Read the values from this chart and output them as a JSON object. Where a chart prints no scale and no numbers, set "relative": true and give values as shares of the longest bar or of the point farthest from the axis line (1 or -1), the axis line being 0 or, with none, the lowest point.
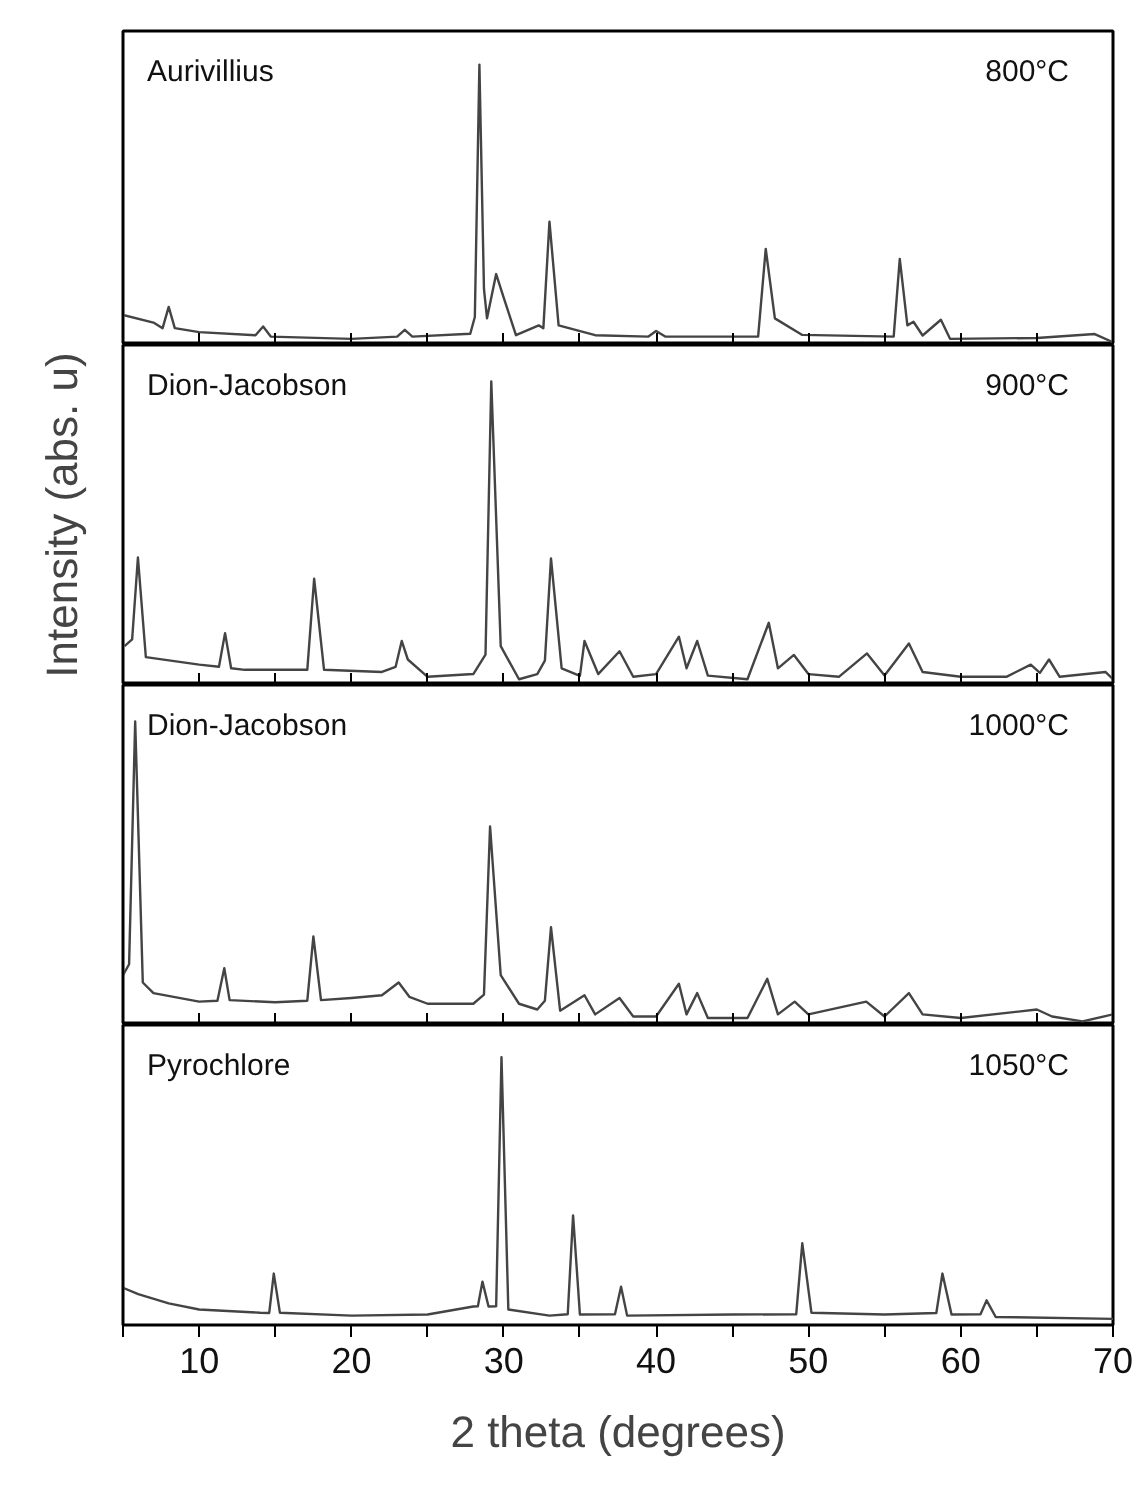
{
  "chart_data": [
    {
      "type": "line",
      "relative": true,
      "xlim": [
        5,
        70
      ],
      "xticks": [
        {
          "value": 5,
          "label": null
        },
        10,
        {
          "value": 15,
          "label": null
        },
        20,
        {
          "value": 25,
          "label": null
        },
        30,
        {
          "value": 35,
          "label": null
        },
        40,
        {
          "value": 45,
          "label": null
        },
        50,
        {
          "value": 55,
          "label": null
        },
        60,
        {
          "value": 65,
          "label": null
        },
        70
      ],
      "tick_labels": false,
      "grid": false,
      "annotations": [
        "Aurivillius",
        "800°C"
      ],
      "series": [
        {
          "color": "#444444",
          "x": [
            5,
            7,
            7.6,
            8.0,
            8.4,
            10,
            13.7,
            14.2,
            14.7,
            20,
            23.0,
            23.5,
            24.0,
            27.8,
            28.1,
            28.4,
            28.7,
            28.9,
            29.5,
            30.0,
            30.8,
            32.3,
            32.6,
            33.0,
            33.6,
            36.0,
            39.5,
            40.0,
            40.6,
            46.7,
            47.2,
            47.8,
            49.6,
            55.6,
            56.0,
            56.5,
            56.9,
            57.5,
            58.7,
            59.3,
            65,
            68.8,
            70
          ],
          "values": [
            0.107,
            0.08,
            0.06,
            0.136,
            0.06,
            0.046,
            0.035,
            0.066,
            0.03,
            0.022,
            0.03,
            0.054,
            0.03,
            0.04,
            0.1,
            1,
            0.2,
            0.095,
            0.253,
            0.168,
            0.035,
            0.07,
            0.06,
            0.44,
            0.07,
            0.035,
            0.03,
            0.05,
            0.03,
            0.03,
            0.343,
            0.095,
            0.036,
            0.03,
            0.307,
            0.07,
            0.083,
            0.034,
            0.09,
            0.022,
            0.025,
            0.039,
            0.01
          ]
        }
      ]
    },
    {
      "type": "line",
      "relative": true,
      "xlim": [
        5,
        70
      ],
      "xticks": [
        {
          "value": 5,
          "label": null
        },
        10,
        {
          "value": 15,
          "label": null
        },
        20,
        {
          "value": 25,
          "label": null
        },
        30,
        {
          "value": 35,
          "label": null
        },
        40,
        {
          "value": 45,
          "label": null
        },
        50,
        {
          "value": 55,
          "label": null
        },
        60,
        {
          "value": 65,
          "label": null
        },
        70
      ],
      "tick_labels": false,
      "grid": false,
      "ylabel": "Intensity (abs. u)",
      "annotations": [
        "Dion-Jacobson",
        "900°C"
      ],
      "series": [
        {
          "color": "#444444",
          "x": [
            5.1,
            5.6,
            5.98,
            6.5,
            10,
            11.3,
            11.7,
            12.1,
            13,
            17.1,
            17.55,
            18.2,
            22,
            22.9,
            23.3,
            23.7,
            25,
            28,
            28.8,
            29.18,
            29.8,
            31,
            32.2,
            32.7,
            33.1,
            33.8,
            35.0,
            35.3,
            36.2,
            37.6,
            38.5,
            40,
            41.5,
            42.0,
            42.7,
            43.4,
            46,
            47.4,
            48,
            49.05,
            50,
            52,
            53.85,
            55,
            56.6,
            57.5,
            60,
            63,
            64.6,
            65.2,
            65.8,
            66.5,
            69.5,
            70
          ],
          "values": [
            0.128,
            0.15,
            0.42,
            0.092,
            0.067,
            0.06,
            0.171,
            0.055,
            0.05,
            0.05,
            0.35,
            0.05,
            0.043,
            0.06,
            0.145,
            0.084,
            0.027,
            0.036,
            0.1,
            1,
            0.128,
            0.019,
            0.036,
            0.08,
            0.417,
            0.055,
            0.03,
            0.145,
            0.036,
            0.111,
            0.027,
            0.036,
            0.159,
            0.055,
            0.145,
            0.031,
            0.019,
            0.205,
            0.055,
            0.099,
            0.036,
            0.027,
            0.104,
            0.031,
            0.137,
            0.043,
            0.027,
            0.027,
            0.067,
            0.04,
            0.084,
            0.027,
            0.043,
            0.019
          ]
        }
      ]
    },
    {
      "type": "line",
      "relative": true,
      "xlim": [
        5,
        70
      ],
      "xticks": [
        {
          "value": 5,
          "label": null
        },
        10,
        {
          "value": 15,
          "label": null
        },
        20,
        {
          "value": 25,
          "label": null
        },
        30,
        {
          "value": 35,
          "label": null
        },
        40,
        {
          "value": 45,
          "label": null
        },
        50,
        {
          "value": 55,
          "label": null
        },
        60,
        {
          "value": 65,
          "label": null
        },
        70
      ],
      "tick_labels": false,
      "grid": false,
      "annotations": [
        "Dion-Jacobson",
        "1000°C"
      ],
      "series": [
        {
          "color": "#444444",
          "x": [
            5,
            5.4,
            5.8,
            6.3,
            7,
            10,
            11.2,
            11.65,
            12,
            15,
            17.1,
            17.5,
            18,
            20,
            22,
            23.1,
            23.8,
            25,
            28,
            28.7,
            29.1,
            29.8,
            31,
            32.2,
            32.7,
            33.1,
            33.7,
            35.3,
            36,
            37.6,
            38.5,
            40,
            41.5,
            42,
            42.7,
            43.4,
            46,
            47.3,
            48,
            49.1,
            50,
            53.8,
            55,
            56.6,
            57.5,
            60,
            65,
            66,
            68,
            70
          ],
          "values": [
            0.164,
            0.2,
            1,
            0.14,
            0.105,
            0.077,
            0.08,
            0.187,
            0.082,
            0.075,
            0.08,
            0.292,
            0.082,
            0.089,
            0.098,
            0.14,
            0.093,
            0.07,
            0.07,
            0.1,
            0.654,
            0.164,
            0.07,
            0.051,
            0.08,
            0.322,
            0.047,
            0.098,
            0.035,
            0.089,
            0.028,
            0.028,
            0.136,
            0.035,
            0.105,
            0.023,
            0.023,
            0.152,
            0.035,
            0.077,
            0.035,
            0.077,
            0.028,
            0.105,
            0.035,
            0.023,
            0.051,
            0.028,
            0.012,
            0.035
          ]
        }
      ]
    },
    {
      "type": "line",
      "relative": true,
      "xlim": [
        5,
        70
      ],
      "xticks": [
        {
          "value": 5,
          "label": null
        },
        10,
        {
          "value": 15,
          "label": null
        },
        20,
        {
          "value": 25,
          "label": null
        },
        30,
        {
          "value": 35,
          "label": null
        },
        40,
        {
          "value": 45,
          "label": null
        },
        50,
        {
          "value": 55,
          "label": null
        },
        60,
        {
          "value": 65,
          "label": null
        },
        70
      ],
      "tick_labels": "x",
      "grid": false,
      "xlabel": "2 theta (degrees)",
      "annotations": [
        "Pyrochlore",
        "1050°C"
      ],
      "series": [
        {
          "color": "#444444",
          "x": [
            5,
            6,
            8,
            10,
            14,
            14.6,
            14.9,
            15.3,
            20,
            25,
            28,
            28.3,
            28.6,
            29,
            29.5,
            29.85,
            30.3,
            33,
            34.2,
            34.55,
            35,
            37.3,
            37.7,
            38.1,
            45,
            49.2,
            49.6,
            50.2,
            55,
            58.4,
            58.8,
            59.4,
            61.3,
            61.7,
            62.3,
            70
          ],
          "values": [
            0.139,
            0.115,
            0.081,
            0.058,
            0.046,
            0.045,
            0.192,
            0.046,
            0.035,
            0.039,
            0.069,
            0.07,
            0.162,
            0.069,
            0.07,
            1,
            0.058,
            0.035,
            0.04,
            0.409,
            0.039,
            0.04,
            0.143,
            0.035,
            0.039,
            0.04,
            0.305,
            0.046,
            0.039,
            0.045,
            0.192,
            0.039,
            0.04,
            0.092,
            0.03,
            0.023
          ]
        }
      ]
    }
  ]
}
